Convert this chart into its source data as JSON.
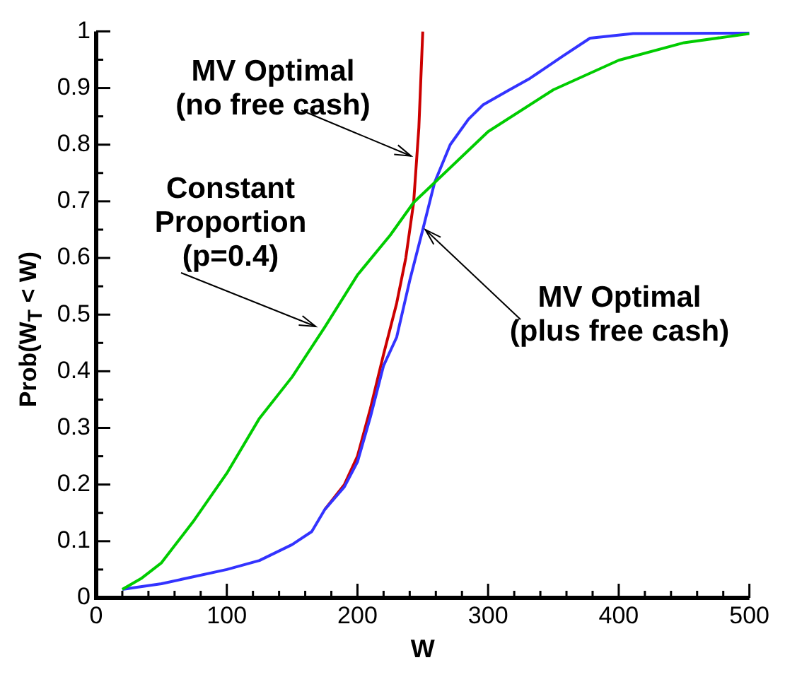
{
  "chart_data": {
    "type": "line",
    "xlabel": "W",
    "ylabel": "Prob(W$_{T}$ < W)",
    "xlim": [
      0,
      500
    ],
    "ylim": [
      0,
      1
    ],
    "xticks": [
      0,
      {
        "value": 20,
        "label": null
      },
      {
        "value": 40,
        "label": null
      },
      {
        "value": 60,
        "label": null
      },
      {
        "value": 80,
        "label": null
      },
      100,
      {
        "value": 120,
        "label": null
      },
      {
        "value": 140,
        "label": null
      },
      {
        "value": 160,
        "label": null
      },
      {
        "value": 180,
        "label": null
      },
      200,
      {
        "value": 220,
        "label": null
      },
      {
        "value": 240,
        "label": null
      },
      {
        "value": 260,
        "label": null
      },
      {
        "value": 280,
        "label": null
      },
      300,
      {
        "value": 320,
        "label": null
      },
      {
        "value": 340,
        "label": null
      },
      {
        "value": 360,
        "label": null
      },
      {
        "value": 380,
        "label": null
      },
      400,
      {
        "value": 420,
        "label": null
      },
      {
        "value": 440,
        "label": null
      },
      {
        "value": 460,
        "label": null
      },
      {
        "value": 480,
        "label": null
      },
      500
    ],
    "yticks": [
      0,
      {
        "value": 0.05,
        "label": null
      },
      0.1,
      {
        "value": 0.15,
        "label": null
      },
      0.2,
      {
        "value": 0.25,
        "label": null
      },
      0.3,
      {
        "value": 0.35,
        "label": null
      },
      0.4,
      {
        "value": 0.45,
        "label": null
      },
      0.5,
      {
        "value": 0.55,
        "label": null
      },
      0.6,
      {
        "value": 0.65,
        "label": null
      },
      0.7,
      {
        "value": 0.75,
        "label": null
      },
      0.8,
      {
        "value": 0.85,
        "label": null
      },
      0.9,
      {
        "value": 0.95,
        "label": null
      },
      1
    ],
    "grid": false,
    "legend": false,
    "marker": "none",
    "line_style": "solid",
    "series": [
      {
        "color": "#00cc00",
        "x": [
          20,
          35,
          50,
          75,
          100,
          125,
          150,
          175,
          200,
          225,
          243,
          259,
          300,
          350,
          400,
          450,
          500
        ],
        "values": [
          0.015,
          0.035,
          0.062,
          0.137,
          0.22,
          0.317,
          0.39,
          0.478,
          0.57,
          0.64,
          0.698,
          0.733,
          0.823,
          0.897,
          0.949,
          0.98,
          0.996
        ]
      },
      {
        "color": "#3333ff",
        "x": [
          20,
          50,
          100,
          125,
          150,
          165,
          175,
          190,
          200,
          210,
          220,
          230,
          240,
          250,
          259,
          271,
          285,
          296,
          315,
          332,
          357,
          378,
          411,
          500
        ],
        "values": [
          0.015,
          0.025,
          0.05,
          0.066,
          0.094,
          0.117,
          0.156,
          0.196,
          0.24,
          0.32,
          0.41,
          0.46,
          0.56,
          0.65,
          0.733,
          0.8,
          0.845,
          0.87,
          0.895,
          0.917,
          0.956,
          0.988,
          0.996,
          0.997
        ]
      },
      {
        "color": "#cc0000",
        "x": [
          175,
          190,
          200,
          210,
          220,
          230,
          237,
          243,
          247,
          250
        ],
        "values": [
          0.156,
          0.2,
          0.25,
          0.335,
          0.43,
          0.52,
          0.6,
          0.698,
          0.83,
          1.0
        ]
      }
    ],
    "annotations": [
      {
        "text": "MV Optimal\n(no free cash)",
        "x": 241,
        "y": 0.78
      },
      {
        "text": "Constant\nProportion\n(p=0.4)",
        "x": 168,
        "y": 0.479
      },
      {
        "text": "MV Optimal\n(plus free cash)",
        "x": 252,
        "y": 0.65
      }
    ]
  }
}
